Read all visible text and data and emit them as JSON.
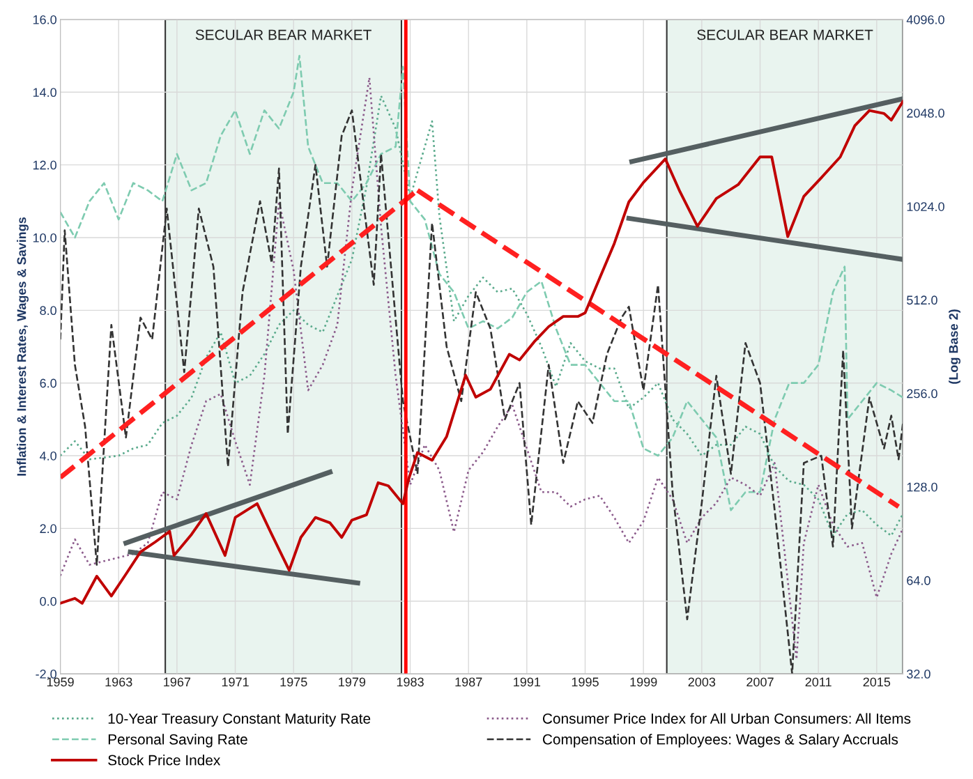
{
  "chart_data": {
    "type": "line",
    "ylabel": "Inflation & Interest Rates, Wages & Savings",
    "y2label": "(Log Base 2)",
    "xlim": [
      1959,
      2016.8
    ],
    "xticks": [
      1959,
      1963,
      1967,
      1971,
      1975,
      1979,
      1983,
      1987,
      1991,
      1995,
      1999,
      2003,
      2007,
      2011,
      2015
    ],
    "ylim": [
      -2,
      16
    ],
    "yticks": [
      {
        "value": -2,
        "label": "-2.0"
      },
      {
        "value": 0,
        "label": "0.0"
      },
      {
        "value": 2,
        "label": "2.0"
      },
      {
        "value": 4,
        "label": "4.0"
      },
      {
        "value": 6,
        "label": "6.0"
      },
      {
        "value": 8,
        "label": "8.0"
      },
      {
        "value": 10,
        "label": "10.0"
      },
      {
        "value": 12,
        "label": "12.0"
      },
      {
        "value": 14,
        "label": "14.0"
      },
      {
        "value": 16,
        "label": "16.0"
      }
    ],
    "y2lim": [
      32,
      4096
    ],
    "y2ticks": [
      {
        "value": 32,
        "label": "32.0"
      },
      {
        "value": 64,
        "label": "64.0"
      },
      {
        "value": 128,
        "label": "128.0"
      },
      {
        "value": 256,
        "label": "256.0"
      },
      {
        "value": 512,
        "label": "512.0"
      },
      {
        "value": 1024,
        "label": "1024.0"
      },
      {
        "value": 2048,
        "label": "2048.0"
      },
      {
        "value": 4096,
        "label": "4096.0"
      }
    ],
    "log": "y2",
    "grid": true,
    "legend": "bottom",
    "bands": [
      {
        "axis": "x",
        "from": 1966.2,
        "to": 1982.4,
        "label": "SECULAR BEAR MARKET",
        "color": "#e9f4ef"
      },
      {
        "axis": "x",
        "from": 2000.6,
        "to": 2016.8,
        "label": "SECULAR BEAR MARKET",
        "color": "#e9f4ef"
      }
    ],
    "ref_lines": [
      {
        "axis": "x",
        "value": 1982.7,
        "color": "#ff0000",
        "line_style": "solid"
      }
    ],
    "series": [
      {
        "name": "10-Year Treasury Constant Maturity Rate",
        "color": "#5aaa8c",
        "line_style": "dotted",
        "x": [
          1959,
          1960,
          1961,
          1962,
          1963,
          1964,
          1965,
          1966,
          1967,
          1968,
          1969,
          1970,
          1971,
          1972,
          1973,
          1974,
          1975,
          1976,
          1977,
          1978,
          1979,
          1980,
          1981,
          1982,
          1983,
          1984,
          1984.5,
          1985,
          1986,
          1987,
          1988,
          1989,
          1990,
          1991,
          1992,
          1993,
          1994,
          1995,
          1996,
          1997,
          1998,
          1999,
          2000,
          2001,
          2002,
          2003,
          2004,
          2005,
          2006,
          2007,
          2008,
          2009,
          2010,
          2011,
          2012,
          2013,
          2014,
          2015,
          2016,
          2016.8
        ],
        "values": [
          4.0,
          4.4,
          3.9,
          3.95,
          4.0,
          4.2,
          4.3,
          4.9,
          5.1,
          5.6,
          6.7,
          7.4,
          6.0,
          6.2,
          6.8,
          7.6,
          8.0,
          7.6,
          7.4,
          8.4,
          9.4,
          11.4,
          13.9,
          13.0,
          11.1,
          12.5,
          13.2,
          10.6,
          7.7,
          8.4,
          8.9,
          8.5,
          8.6,
          7.9,
          7.0,
          5.9,
          7.1,
          6.6,
          6.4,
          6.4,
          5.3,
          5.6,
          6.0,
          5.0,
          4.6,
          4.0,
          4.3,
          4.3,
          4.8,
          4.6,
          3.7,
          3.3,
          3.2,
          2.8,
          1.8,
          2.4,
          2.5,
          2.1,
          1.8,
          2.4
        ]
      },
      {
        "name": "Personal Saving Rate",
        "color": "#7ecbb0",
        "line_style": "dashed",
        "x": [
          1959,
          1960,
          1961,
          1962,
          1963,
          1964,
          1965,
          1966,
          1967,
          1968,
          1969,
          1970,
          1971,
          1972,
          1973,
          1974,
          1975,
          1975.4,
          1976,
          1977,
          1978,
          1979,
          1980,
          1981,
          1982,
          1982.5,
          1983,
          1984,
          1985,
          1986,
          1987,
          1988,
          1989,
          1990,
          1991,
          1992,
          1993,
          1994,
          1995,
          1996,
          1997,
          1998,
          1999,
          2000,
          2001,
          2002,
          2003,
          2004,
          2005,
          2006,
          2007,
          2008,
          2009,
          2010,
          2011,
          2012,
          2012.8,
          2013,
          2014,
          2015,
          2016,
          2016.8
        ],
        "values": [
          10.7,
          10.0,
          11.0,
          11.5,
          10.5,
          11.5,
          11.3,
          11.0,
          12.3,
          11.3,
          11.5,
          12.8,
          13.5,
          12.3,
          13.5,
          13.0,
          14.0,
          15.0,
          12.5,
          11.5,
          11.5,
          11.0,
          11.5,
          12.3,
          12.5,
          14.7,
          11.0,
          10.5,
          9.0,
          8.5,
          7.5,
          7.7,
          7.5,
          7.8,
          8.5,
          8.8,
          7.5,
          6.5,
          6.5,
          6.0,
          5.5,
          5.5,
          4.2,
          4.0,
          4.5,
          5.5,
          5.0,
          4.5,
          2.5,
          3.0,
          3.0,
          5.0,
          6.0,
          6.0,
          6.5,
          8.5,
          9.2,
          5.0,
          5.5,
          6.0,
          5.8,
          5.6
        ]
      },
      {
        "name": "Stock Price Index",
        "color": "#c00000",
        "line_style": "solid",
        "axis": "y2",
        "x": [
          1959,
          1960,
          1960.5,
          1961.5,
          1962.5,
          1963.5,
          1964.5,
          1965.5,
          1966.5,
          1966.8,
          1968,
          1969,
          1970.3,
          1971,
          1972.5,
          1973.5,
          1974.7,
          1975.5,
          1976.5,
          1977.5,
          1978.3,
          1979,
          1980,
          1980.8,
          1981.5,
          1982.5,
          1982.9,
          1983.5,
          1984.5,
          1985.5,
          1986.8,
          1987.5,
          1988.5,
          1989.8,
          1990.5,
          1991.5,
          1992.5,
          1993.5,
          1994.5,
          1995,
          1996,
          1997,
          1998,
          1999,
          2000.5,
          2001.5,
          2002.7,
          2004,
          2005.5,
          2007,
          2007.8,
          2008.9,
          2010,
          2011.2,
          2012.5,
          2013.5,
          2014.5,
          2015.5,
          2016,
          2016.8
        ],
        "values": [
          54,
          56,
          54,
          66,
          57,
          67,
          79,
          85,
          92,
          77,
          90,
          105,
          77,
          102,
          113,
          90,
          69,
          88,
          102,
          98,
          88,
          100,
          104,
          132,
          129,
          113,
          136,
          165,
          156,
          186,
          293,
          249,
          264,
          342,
          328,
          375,
          420,
          453,
          453,
          465,
          602,
          778,
          1059,
          1223,
          1456,
          1143,
          884,
          1086,
          1204,
          1478,
          1478,
          819,
          1103,
          1267,
          1478,
          1864,
          2086,
          2040,
          1942,
          2230
        ]
      },
      {
        "name": "Consumer Price Index for All Urban Consumers: All Items",
        "color": "#8b5a8b",
        "line_style": "dotted",
        "x": [
          1959,
          1960,
          1961,
          1962,
          1963,
          1964,
          1965,
          1966,
          1967,
          1968,
          1969,
          1970,
          1971,
          1972,
          1973,
          1974,
          1975,
          1976,
          1977,
          1978,
          1979,
          1980.2,
          1981,
          1982,
          1983,
          1984,
          1985,
          1986,
          1987,
          1988,
          1989,
          1990,
          1991,
          1992,
          1993,
          1994,
          1995,
          1996,
          1997,
          1998,
          1999,
          2000,
          2001,
          2002,
          2003,
          2004,
          2005,
          2006,
          2007,
          2008,
          2009.5,
          2010,
          2011,
          2012,
          2013,
          2014,
          2015,
          2016,
          2016.8
        ],
        "values": [
          0.7,
          1.7,
          1.0,
          1.1,
          1.2,
          1.3,
          1.6,
          3.0,
          2.8,
          4.3,
          5.5,
          5.7,
          4.4,
          3.2,
          6.2,
          11.0,
          9.1,
          5.8,
          6.5,
          7.6,
          11.3,
          14.4,
          10.3,
          6.2,
          3.2,
          4.3,
          3.6,
          1.9,
          3.6,
          4.1,
          4.8,
          5.4,
          4.2,
          3.0,
          3.0,
          2.6,
          2.8,
          2.9,
          2.3,
          1.6,
          2.2,
          3.4,
          2.8,
          1.6,
          2.3,
          2.7,
          3.4,
          3.2,
          2.9,
          3.8,
          -1.6,
          1.6,
          3.2,
          2.1,
          1.5,
          1.6,
          0.1,
          1.3,
          2.0
        ]
      },
      {
        "name": "Compensation of Employees: Wages & Salary Accruals",
        "color": "#333333",
        "line_style": "dashed",
        "x": [
          1959,
          1959.3,
          1960,
          1960.7,
          1961.5,
          1962.5,
          1963.5,
          1964.5,
          1965.3,
          1966.3,
          1967.5,
          1968.5,
          1969.5,
          1970.5,
          1971.5,
          1972.7,
          1973.5,
          1974,
          1974.6,
          1975.5,
          1976.5,
          1977.3,
          1978.3,
          1979,
          1980.5,
          1981,
          1982.5,
          1983.5,
          1984.5,
          1985.5,
          1986.5,
          1987.5,
          1988.5,
          1989.5,
          1990.5,
          1991.3,
          1992.5,
          1993.5,
          1994.5,
          1995.5,
          1996.5,
          1997.5,
          1998,
          1999,
          2000,
          2001,
          2002,
          2003,
          2004,
          2005,
          2006,
          2007,
          2008,
          2009.2,
          2010,
          2011.2,
          2012,
          2012.7,
          2013.3,
          2014.5,
          2015.5,
          2016,
          2016.5,
          2016.8
        ],
        "values": [
          7.2,
          10.2,
          6.5,
          4.8,
          1.0,
          7.6,
          4.5,
          7.8,
          7.2,
          10.8,
          6.3,
          10.8,
          9.2,
          3.7,
          8.5,
          11.0,
          9.3,
          11.9,
          4.6,
          9.2,
          12.0,
          9.2,
          12.8,
          13.5,
          8.7,
          12.3,
          5.5,
          3.5,
          10.4,
          7.0,
          5.5,
          8.5,
          7.5,
          5.0,
          6.0,
          2.1,
          6.5,
          3.8,
          5.5,
          4.9,
          6.8,
          7.8,
          8.1,
          5.8,
          8.7,
          3.0,
          -0.5,
          2.7,
          6.2,
          3.5,
          7.1,
          6.0,
          2.5,
          -2.0,
          3.8,
          4.0,
          1.5,
          6.9,
          2.0,
          5.6,
          4.2,
          5.1,
          3.9,
          4.9
        ]
      },
      {
        "color": "#555f61",
        "line_style": "solid",
        "x": [
          1963.5,
          1977.5
        ],
        "values": [
          1.6,
          3.55
        ]
      },
      {
        "color": "#555f61",
        "line_style": "solid",
        "x": [
          1963.8,
          1979.4
        ],
        "values": [
          1.35,
          0.5
        ]
      },
      {
        "color": "#555f61",
        "line_style": "solid",
        "x": [
          1998.2,
          2016.8
        ],
        "values": [
          12.09,
          13.82
        ]
      },
      {
        "color": "#555f61",
        "line_style": "solid",
        "x": [
          1998.0,
          2016.8
        ],
        "values": [
          10.53,
          9.4
        ]
      },
      {
        "color": "#ff2020",
        "line_style": "dashed",
        "x": [
          1959,
          1983.5
        ],
        "values": [
          3.4,
          11.3
        ]
      },
      {
        "color": "#ff2020",
        "line_style": "dashed",
        "x": [
          1983.5,
          2016.5
        ],
        "values": [
          11.3,
          2.6
        ]
      }
    ]
  }
}
